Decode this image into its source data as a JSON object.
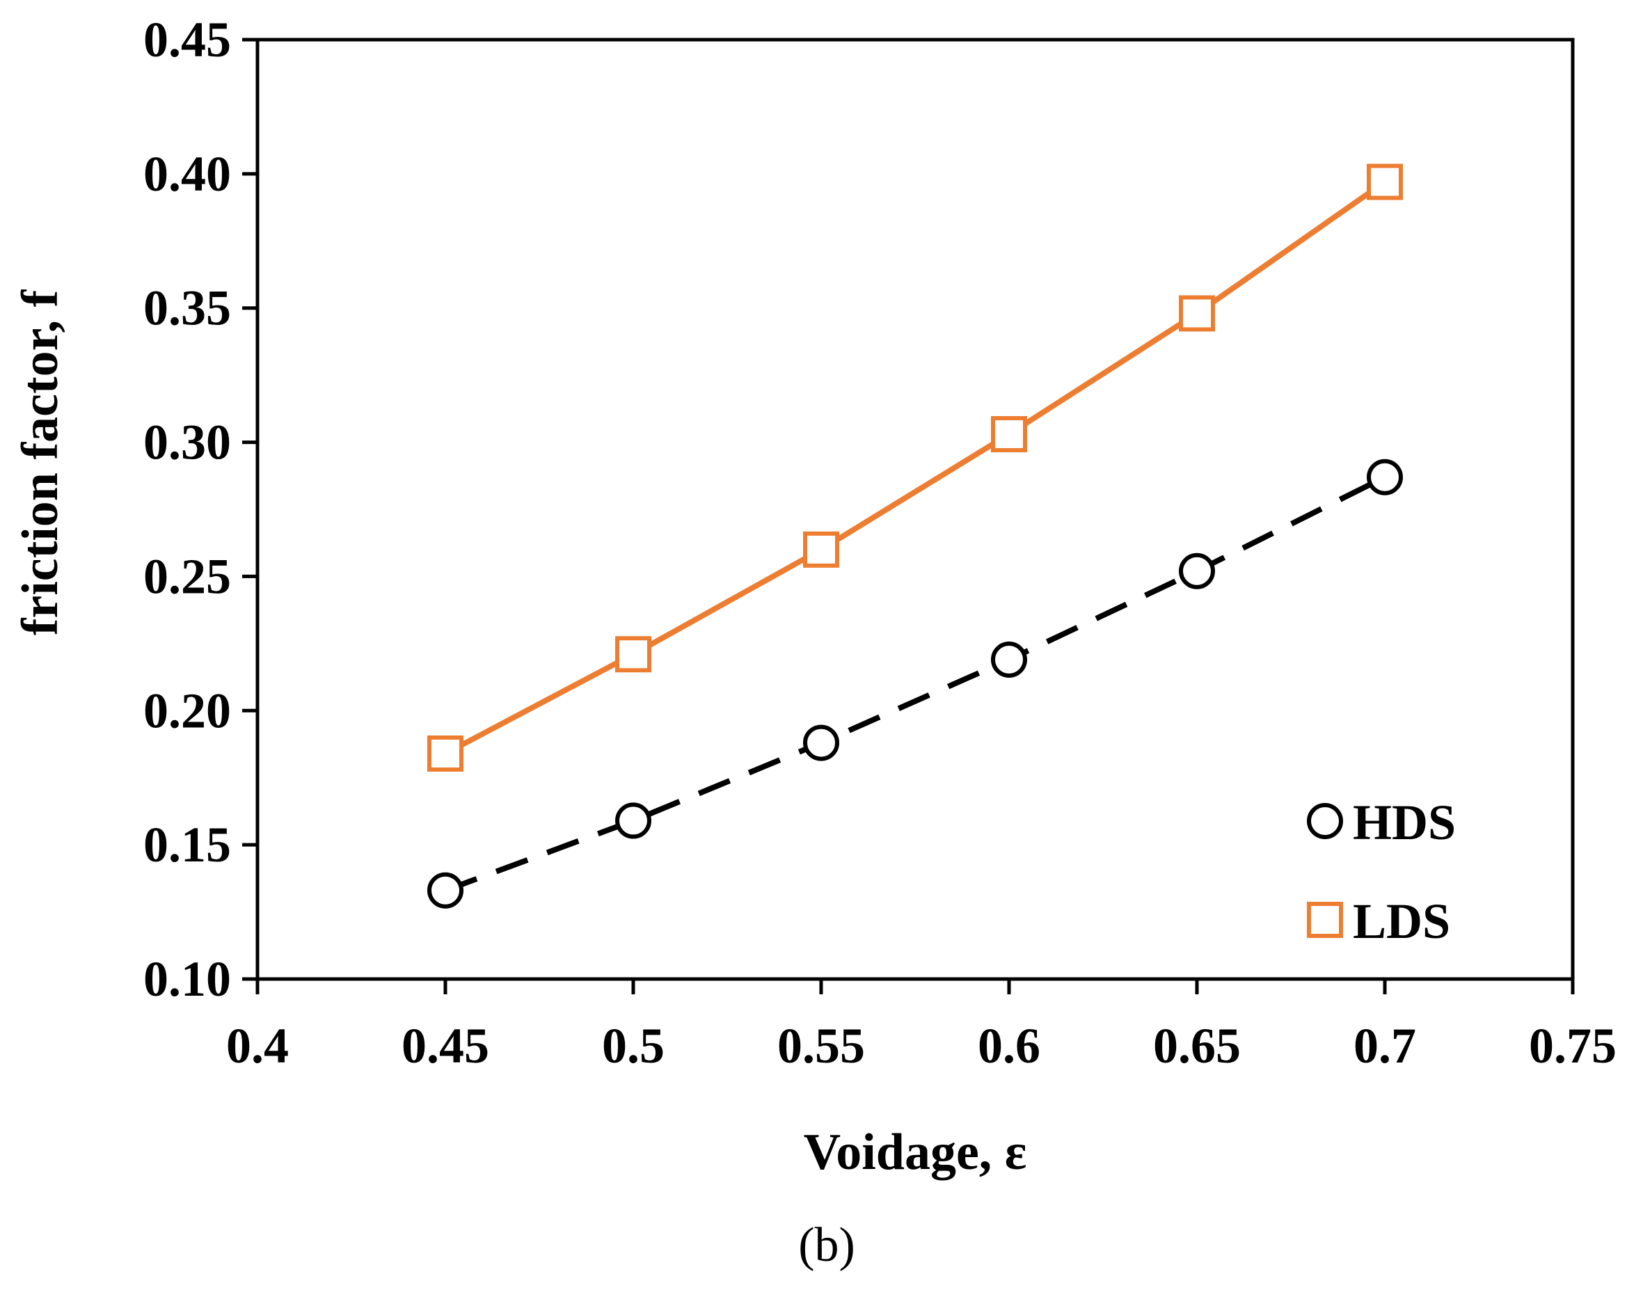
{
  "chart_data": {
    "type": "line",
    "xlabel": "Voidage, ε",
    "ylabel": "friction factor, f",
    "caption": "(b)",
    "xlim": [
      0.4,
      0.75
    ],
    "ylim": [
      0.1,
      0.45
    ],
    "x_ticks": [
      "0.4",
      "0.45",
      "0.5",
      "0.55",
      "0.6",
      "0.65",
      "0.7",
      "0.75"
    ],
    "y_ticks": [
      "0.10",
      "0.15",
      "0.20",
      "0.25",
      "0.30",
      "0.35",
      "0.40",
      "0.45"
    ],
    "x": [
      0.45,
      0.5,
      0.55,
      0.6,
      0.65,
      0.7
    ],
    "series": [
      {
        "name": "HDS",
        "marker": "circle",
        "line_style": "dashed",
        "color": "#000000",
        "values": [
          0.133,
          0.159,
          0.188,
          0.219,
          0.252,
          0.287
        ]
      },
      {
        "name": "LDS",
        "marker": "square",
        "line_style": "solid",
        "color": "#ED7D31",
        "values": [
          0.184,
          0.221,
          0.26,
          0.303,
          0.348,
          0.397
        ]
      }
    ],
    "legend_position": "bottom-right",
    "grid": false
  }
}
